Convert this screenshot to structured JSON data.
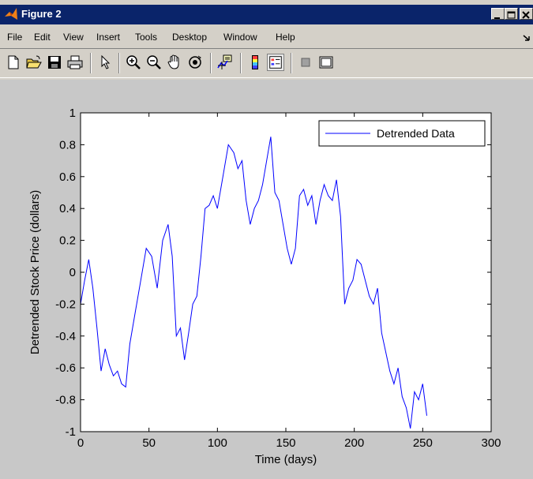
{
  "window": {
    "title": "Figure 2"
  },
  "menu": [
    "File",
    "Edit",
    "View",
    "Insert",
    "Tools",
    "Desktop",
    "Window",
    "Help"
  ],
  "toolbar": [
    "new-file",
    "open-file",
    "save",
    "print",
    "edit-plot-pointer",
    "zoom-in",
    "zoom-out",
    "pan",
    "rotate-3d",
    "data-cursor",
    "insert-colorbar",
    "insert-legend",
    "hide-plot-tools",
    "show-plot-tools"
  ],
  "colors": {
    "line": "#0000ff",
    "axes_bg": "#ffffff",
    "figure_bg": "#c8c8c8",
    "titlebar": "#0a246a"
  },
  "chart_data": {
    "type": "line",
    "title": "",
    "xlabel": "Time (days)",
    "ylabel": "Detrended Stock Price (dollars)",
    "xlim": [
      0,
      300
    ],
    "ylim": [
      -1,
      1
    ],
    "xticks": [
      0,
      50,
      100,
      150,
      200,
      250,
      300
    ],
    "yticks": [
      -1,
      -0.8,
      -0.6,
      -0.4,
      -0.2,
      0,
      0.2,
      0.4,
      0.6,
      0.8,
      1
    ],
    "xtick_labels": [
      "0",
      "50",
      "100",
      "150",
      "200",
      "250",
      "300"
    ],
    "ytick_labels": [
      "-1",
      "-0.8",
      "-0.6",
      "-0.4",
      "-0.2",
      "0",
      "0.2",
      "0.4",
      "0.6",
      "0.8",
      "1"
    ],
    "grid": false,
    "legend": {
      "location": "top-right",
      "entries": [
        "Detrended Data"
      ]
    },
    "series": [
      {
        "name": "Detrended Data",
        "x": [
          0,
          3,
          6,
          9,
          12,
          15,
          18,
          21,
          24,
          27,
          30,
          33,
          36,
          40,
          44,
          48,
          52,
          56,
          60,
          64,
          67,
          70,
          73,
          76,
          79,
          82,
          85,
          88,
          91,
          94,
          97,
          100,
          104,
          108,
          112,
          115,
          118,
          121,
          124,
          127,
          130,
          133,
          136,
          139,
          142,
          145,
          148,
          151,
          154,
          157,
          160,
          163,
          166,
          169,
          172,
          175,
          178,
          181,
          184,
          187,
          190,
          193,
          196,
          199,
          202,
          205,
          208,
          211,
          214,
          217,
          220,
          223,
          226,
          229,
          232,
          235,
          238,
          241,
          244,
          247,
          250,
          253
        ],
        "values": [
          -0.2,
          -0.05,
          0.08,
          -0.1,
          -0.35,
          -0.62,
          -0.48,
          -0.58,
          -0.65,
          -0.62,
          -0.7,
          -0.72,
          -0.45,
          -0.25,
          -0.05,
          0.15,
          0.1,
          -0.1,
          0.2,
          0.3,
          0.1,
          -0.4,
          -0.35,
          -0.55,
          -0.38,
          -0.2,
          -0.15,
          0.1,
          0.4,
          0.42,
          0.48,
          0.4,
          0.6,
          0.8,
          0.75,
          0.65,
          0.7,
          0.45,
          0.3,
          0.4,
          0.45,
          0.55,
          0.7,
          0.85,
          0.5,
          0.45,
          0.3,
          0.15,
          0.05,
          0.15,
          0.48,
          0.52,
          0.42,
          0.48,
          0.3,
          0.45,
          0.55,
          0.48,
          0.45,
          0.58,
          0.35,
          -0.2,
          -0.1,
          -0.05,
          0.08,
          0.05,
          -0.05,
          -0.15,
          -0.2,
          -0.1,
          -0.38,
          -0.5,
          -0.62,
          -0.7,
          -0.6,
          -0.78,
          -0.85,
          -0.98,
          -0.75,
          -0.8,
          -0.7,
          -0.9
        ]
      }
    ]
  }
}
